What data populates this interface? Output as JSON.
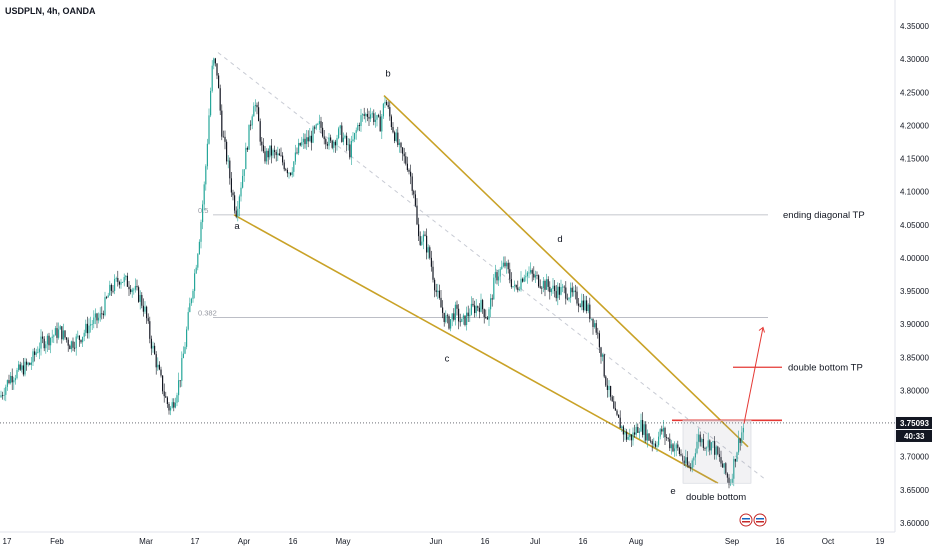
{
  "header": {
    "title": "USDPLN, 4h, OANDA"
  },
  "chart_data": {
    "type": "candlestick",
    "symbol": "USDPLN",
    "interval": "4h",
    "source": "OANDA",
    "ylim": [
      3.6,
      4.36
    ],
    "y_ticks": [
      "4.35000",
      "4.30000",
      "4.25000",
      "4.20000",
      "4.15000",
      "4.10000",
      "4.05000",
      "4.00000",
      "3.95000",
      "3.90000",
      "3.85000",
      "3.80000",
      "3.75000",
      "3.70000",
      "3.65000",
      "3.60000"
    ],
    "x_ticks": [
      "17",
      "Feb",
      "Mar",
      "17",
      "Apr",
      "16",
      "May",
      "Jun",
      "16",
      "Jul",
      "16",
      "Aug",
      "Sep",
      "16",
      "Oct",
      "19"
    ],
    "last_price": "3.75093",
    "countdown": "40:33",
    "price_path": [
      [
        0,
        3.79
      ],
      [
        10,
        3.82
      ],
      [
        20,
        3.83
      ],
      [
        30,
        3.84
      ],
      [
        40,
        3.87
      ],
      [
        50,
        3.88
      ],
      [
        60,
        3.89
      ],
      [
        70,
        3.87
      ],
      [
        80,
        3.88
      ],
      [
        90,
        3.9
      ],
      [
        100,
        3.91
      ],
      [
        110,
        3.95
      ],
      [
        120,
        3.97
      ],
      [
        130,
        3.96
      ],
      [
        140,
        3.94
      ],
      [
        145,
        3.92
      ],
      [
        150,
        3.88
      ],
      [
        155,
        3.85
      ],
      [
        160,
        3.82
      ],
      [
        165,
        3.79
      ],
      [
        170,
        3.77
      ],
      [
        175,
        3.79
      ],
      [
        180,
        3.82
      ],
      [
        185,
        3.87
      ],
      [
        190,
        3.93
      ],
      [
        195,
        3.98
      ],
      [
        200,
        4.04
      ],
      [
        205,
        4.12
      ],
      [
        210,
        4.24
      ],
      [
        213,
        4.3
      ],
      [
        217,
        4.28
      ],
      [
        222,
        4.19
      ],
      [
        228,
        4.14
      ],
      [
        232,
        4.1
      ],
      [
        236,
        4.07
      ],
      [
        242,
        4.12
      ],
      [
        248,
        4.18
      ],
      [
        254,
        4.24
      ],
      [
        258,
        4.21
      ],
      [
        263,
        4.15
      ],
      [
        270,
        4.16
      ],
      [
        280,
        4.15
      ],
      [
        290,
        4.13
      ],
      [
        300,
        4.17
      ],
      [
        310,
        4.18
      ],
      [
        320,
        4.2
      ],
      [
        330,
        4.17
      ],
      [
        340,
        4.19
      ],
      [
        350,
        4.16
      ],
      [
        360,
        4.21
      ],
      [
        370,
        4.22
      ],
      [
        380,
        4.2
      ],
      [
        385,
        4.24
      ],
      [
        392,
        4.2
      ],
      [
        400,
        4.16
      ],
      [
        408,
        4.14
      ],
      [
        414,
        4.1
      ],
      [
        418,
        4.03
      ],
      [
        424,
        4.03
      ],
      [
        430,
        4.0
      ],
      [
        436,
        3.95
      ],
      [
        442,
        3.92
      ],
      [
        448,
        3.9
      ],
      [
        455,
        3.92
      ],
      [
        462,
        3.9
      ],
      [
        470,
        3.92
      ],
      [
        480,
        3.93
      ],
      [
        488,
        3.91
      ],
      [
        495,
        3.97
      ],
      [
        505,
        3.99
      ],
      [
        515,
        3.95
      ],
      [
        525,
        3.98
      ],
      [
        535,
        3.97
      ],
      [
        545,
        3.96
      ],
      [
        555,
        3.95
      ],
      [
        565,
        3.95
      ],
      [
        575,
        3.94
      ],
      [
        585,
        3.93
      ],
      [
        595,
        3.9
      ],
      [
        600,
        3.87
      ],
      [
        605,
        3.82
      ],
      [
        610,
        3.79
      ],
      [
        615,
        3.76
      ],
      [
        620,
        3.75
      ],
      [
        626,
        3.73
      ],
      [
        632,
        3.73
      ],
      [
        640,
        3.75
      ],
      [
        648,
        3.73
      ],
      [
        655,
        3.72
      ],
      [
        662,
        3.74
      ],
      [
        670,
        3.72
      ],
      [
        678,
        3.71
      ],
      [
        685,
        3.69
      ],
      [
        690,
        3.68
      ],
      [
        698,
        3.73
      ],
      [
        705,
        3.72
      ],
      [
        712,
        3.72
      ],
      [
        718,
        3.7
      ],
      [
        724,
        3.68
      ],
      [
        730,
        3.66
      ],
      [
        735,
        3.7
      ],
      [
        740,
        3.73
      ],
      [
        745,
        3.75
      ]
    ],
    "fib_levels": [
      {
        "label": "0.5",
        "price": 4.065
      },
      {
        "label": "0.382",
        "price": 3.91
      }
    ],
    "wave_labels": [
      {
        "label": "a",
        "x": 237,
        "price": 4.05
      },
      {
        "label": "b",
        "x": 388,
        "price": 4.28
      },
      {
        "label": "c",
        "x": 447,
        "price": 3.85
      },
      {
        "label": "d",
        "x": 560,
        "price": 4.03
      },
      {
        "label": "e",
        "x": 673,
        "price": 3.65
      }
    ],
    "trendlines": [
      {
        "name": "upper",
        "from": [
          384,
          4.245
        ],
        "to": [
          748,
          3.715
        ]
      },
      {
        "name": "lower",
        "from": [
          234,
          4.065
        ],
        "to": [
          718,
          3.66
        ]
      },
      {
        "name": "dashed",
        "from": [
          218,
          4.31
        ],
        "to": [
          766,
          3.665
        ]
      }
    ],
    "horizontal_levels": [
      {
        "name": "neckline",
        "price": 3.755,
        "color": "#e53935"
      },
      {
        "name": "ending-diagonal-tp",
        "price": 4.065,
        "color": "#9e9e9e"
      },
      {
        "name": "double-bottom-tp",
        "price": 3.835,
        "color": "#e53935"
      }
    ],
    "annotations": {
      "ending_diagonal_tp": "ending diagonal TP",
      "double_bottom_tp": "double bottom TP",
      "double_bottom": "double bottom"
    },
    "colors": {
      "up": "#26a69a",
      "down": "#131722",
      "trendline": "#c9a227",
      "red_line": "#e53935",
      "badge_bg": "#131722",
      "grid": "#f0f3fa"
    }
  }
}
